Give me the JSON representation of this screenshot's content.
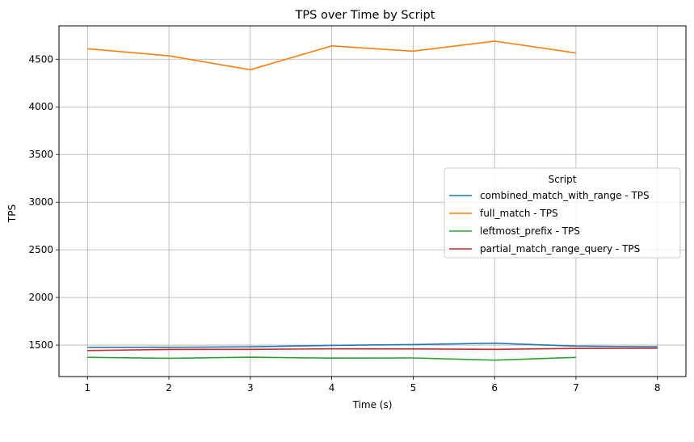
{
  "chart_data": {
    "type": "line",
    "title": "TPS over Time by Script",
    "xlabel": "Time (s)",
    "ylabel": "TPS",
    "xlim": [
      0.65,
      8.35
    ],
    "ylim": [
      1170,
      4850
    ],
    "xticks": [
      1,
      2,
      3,
      4,
      5,
      6,
      7,
      8
    ],
    "yticks": [
      1500,
      2000,
      2500,
      3000,
      3500,
      4000,
      4500
    ],
    "grid": true,
    "legend": {
      "title": "Script",
      "placement": "center-right"
    },
    "series": [
      {
        "name": "combined_match_with_range - TPS",
        "color": "#1f77b4",
        "x": [
          1,
          2,
          3,
          4,
          5,
          6,
          7,
          8
        ],
        "y": [
          1475,
          1477,
          1482,
          1497,
          1506,
          1520,
          1490,
          1482
        ]
      },
      {
        "name": "full_match - TPS",
        "color": "#ff7f0e",
        "x": [
          1,
          2,
          3,
          4,
          5,
          6,
          7
        ],
        "y": [
          4610,
          4535,
          4390,
          4640,
          4585,
          4690,
          4565
        ]
      },
      {
        "name": "leftmost_prefix - TPS",
        "color": "#2ca02c",
        "x": [
          1,
          2,
          3,
          4,
          5,
          6,
          7
        ],
        "y": [
          1372,
          1362,
          1373,
          1363,
          1365,
          1342,
          1371
        ]
      },
      {
        "name": "partial_match_range_query - TPS",
        "color": "#d62728",
        "x": [
          1,
          2,
          3,
          4,
          5,
          6,
          7,
          8
        ],
        "y": [
          1443,
          1455,
          1456,
          1461,
          1460,
          1456,
          1465,
          1467
        ]
      }
    ]
  }
}
